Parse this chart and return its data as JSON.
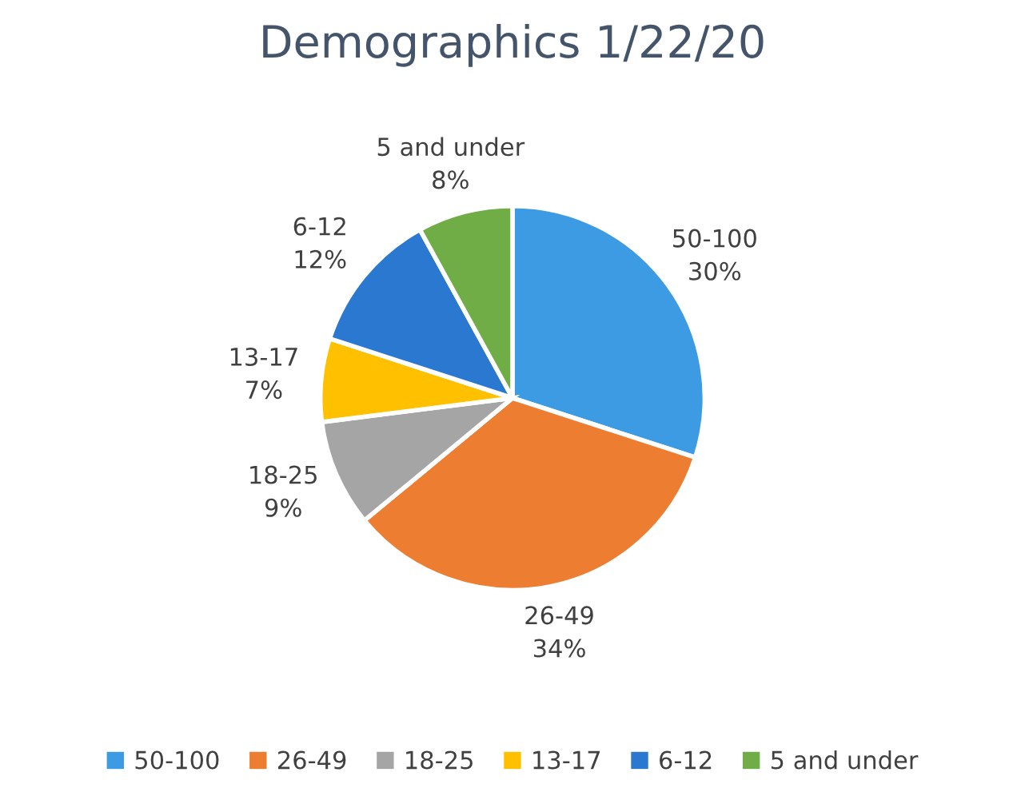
{
  "chart_data": {
    "type": "pie",
    "title": "Demographics 1/22/20",
    "categories": [
      "50-100",
      "26-49",
      "18-25",
      "13-17",
      "6-12",
      "5 and under"
    ],
    "values": [
      30,
      34,
      9,
      7,
      12,
      8
    ],
    "value_labels": [
      "30%",
      "34%",
      "9%",
      "7%",
      "12%",
      "8%"
    ],
    "colors": [
      "#3d9be4",
      "#ed7d31",
      "#a5a5a5",
      "#ffc000",
      "#2a78d0",
      "#70ad47"
    ],
    "legend": "bottom"
  }
}
